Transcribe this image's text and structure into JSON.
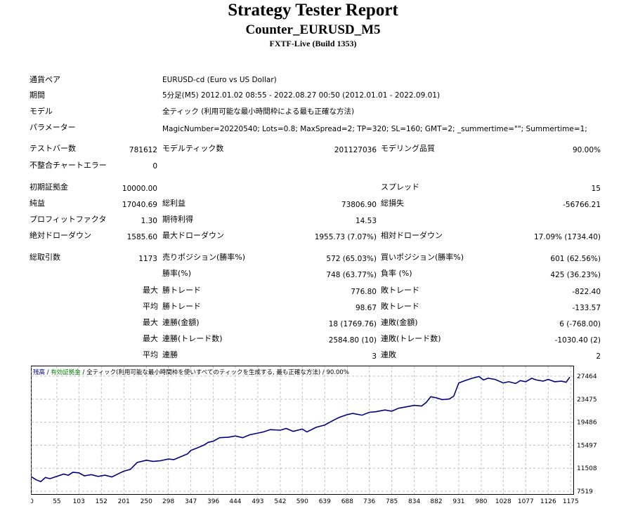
{
  "header": {
    "title": "Strategy Tester Report",
    "subtitle": "Counter_EURUSD_M5",
    "server": "FXTF-Live (Build 1353)"
  },
  "info": {
    "symbol": {
      "label": "通貨ペア",
      "value": "EURUSD-cd (Euro vs US Dollar)"
    },
    "period": {
      "label": "期間",
      "value": "5分足(M5) 2012.01.02 08:55 - 2022.08.27 00:50 (2012.01.01 - 2022.09.01)"
    },
    "model": {
      "label": "モデル",
      "value": "全ティック (利用可能な最小時間枠による最も正確な方法)"
    },
    "params": {
      "label": "パラメーター",
      "value": "MagicNumber=20220540; Lots=0.8; MaxSpread=2; TP=320; SL=160; GMT=2; _summertime=\"\"; Summertime=1;"
    }
  },
  "stats": {
    "bars": {
      "label": "テストバー数",
      "value": "781612"
    },
    "ticks": {
      "label": "モデルティック数",
      "value": "201127036"
    },
    "quality": {
      "label": "モデリング品質",
      "value": "90.00%"
    },
    "mismatch": {
      "label": "不整合チャートエラー",
      "value": "0"
    },
    "deposit": {
      "label": "初期証拠金",
      "value": "10000.00"
    },
    "spread": {
      "label": "スプレッド",
      "value": "15"
    },
    "net_profit": {
      "label": "純益",
      "value": "17040.69"
    },
    "gross_profit": {
      "label": "総利益",
      "value": "73806.90"
    },
    "gross_loss": {
      "label": "総損失",
      "value": "-56766.21"
    },
    "profit_factor": {
      "label": "プロフィットファクタ",
      "value": "1.30"
    },
    "expected_payoff": {
      "label": "期待利得",
      "value": "14.53"
    },
    "abs_dd": {
      "label": "絶対ドローダウン",
      "value": "1585.60"
    },
    "max_dd": {
      "label": "最大ドローダウン",
      "value": "1955.73 (7.07%)"
    },
    "rel_dd": {
      "label": "相対ドローダウン",
      "value": "17.09% (1734.40)"
    },
    "total_trades": {
      "label": "総取引数",
      "value": "1173"
    },
    "short_pos": {
      "label": "売りポジション(勝率%)",
      "value": "572 (65.03%)"
    },
    "long_pos": {
      "label": "買いポジション(勝率%)",
      "value": "601 (62.56%)"
    },
    "win_rate": {
      "label": "勝率(%)",
      "value": "748 (63.77%)"
    },
    "loss_rate": {
      "label": "負率 (%)",
      "value": "425 (36.23%)"
    },
    "max_label": "最大",
    "avg_label": "平均",
    "largest_win": {
      "label": "勝トレード",
      "value": "776.80"
    },
    "largest_loss": {
      "label": "敗トレード",
      "value": "-822.40"
    },
    "avg_win": {
      "label": "勝トレード",
      "value": "98.67"
    },
    "avg_loss": {
      "label": "敗トレード",
      "value": "-133.57"
    },
    "max_consec_win_amt": {
      "label": "連勝(金額)",
      "value": "18 (1769.76)"
    },
    "max_consec_loss_amt": {
      "label": "連敗(金額)",
      "value": "6 (-768.00)"
    },
    "max_consec_win_trades": {
      "label": "連勝(トレード数)",
      "value": "2584.80 (10)"
    },
    "max_consec_loss_trades": {
      "label": "連敗(トレード数)",
      "value": "-1030.40 (2)"
    },
    "avg_consec_win": {
      "label": "連勝",
      "value": "3"
    },
    "avg_consec_loss": {
      "label": "連敗",
      "value": "2"
    }
  },
  "chart_data": {
    "type": "line",
    "legend": {
      "balance": "残高",
      "sep1": " / ",
      "equity": "有効証拠金",
      "sep2": " / ",
      "model": "全ティック(利用可能な最小時間枠を使いすべてのティックを生成する, 最も正確な方法)",
      "sep3": " / ",
      "quality": "90.00%"
    },
    "xlabel": "",
    "ylabel": "",
    "x_ticks": [
      0,
      55,
      103,
      152,
      201,
      250,
      298,
      347,
      396,
      444,
      493,
      542,
      590,
      639,
      688,
      736,
      785,
      834,
      882,
      931,
      980,
      1028,
      1077,
      1126,
      1175
    ],
    "y_ticks": [
      7519,
      11508,
      15497,
      19486,
      23475,
      27464
    ],
    "xlim": [
      0,
      1173
    ],
    "ylim": [
      7519,
      28800
    ],
    "grid": true,
    "series": [
      {
        "color": "#000080",
        "x": [
          0,
          10,
          20,
          30,
          40,
          55,
          70,
          80,
          90,
          103,
          115,
          130,
          145,
          160,
          175,
          190,
          201,
          215,
          230,
          250,
          265,
          280,
          298,
          310,
          325,
          340,
          347,
          360,
          375,
          385,
          396,
          410,
          430,
          444,
          460,
          475,
          493,
          505,
          520,
          542,
          555,
          570,
          590,
          600,
          620,
          639,
          655,
          670,
          688,
          700,
          720,
          736,
          750,
          770,
          785,
          800,
          820,
          834,
          850,
          860,
          870,
          882,
          895,
          910,
          920,
          931,
          945,
          960,
          975,
          985,
          995,
          1010,
          1028,
          1040,
          1055,
          1065,
          1077,
          1090,
          1100,
          1115,
          1126,
          1140,
          1155,
          1165,
          1173
        ],
        "y": [
          10000,
          9500,
          9200,
          9900,
          9700,
          10100,
          10500,
          10300,
          10800,
          10700,
          10200,
          10400,
          10100,
          10300,
          10000,
          10600,
          11000,
          11300,
          12500,
          12900,
          12700,
          12800,
          13100,
          13000,
          13500,
          14000,
          14600,
          15000,
          15500,
          16000,
          16200,
          16800,
          16900,
          17100,
          16800,
          17300,
          17600,
          17800,
          18200,
          18100,
          18400,
          17900,
          18300,
          17800,
          18600,
          19000,
          19700,
          20300,
          20800,
          21000,
          20700,
          21200,
          21300,
          21600,
          21400,
          21900,
          22200,
          22400,
          22300,
          22900,
          23900,
          23700,
          23400,
          23500,
          24000,
          26300,
          26700,
          27100,
          27400,
          26800,
          27100,
          26900,
          26300,
          26500,
          26200,
          26700,
          26500,
          27100,
          26800,
          26600,
          26900,
          26500,
          26600,
          26400,
          27300
        ]
      }
    ]
  }
}
